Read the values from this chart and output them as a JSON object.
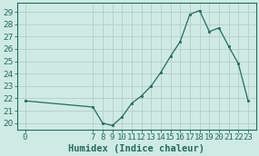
{
  "x": [
    0,
    7,
    8,
    9,
    10,
    11,
    12,
    13,
    14,
    15,
    16,
    17,
    18,
    19,
    20,
    21,
    22,
    23
  ],
  "y": [
    21.8,
    21.3,
    20.0,
    19.8,
    20.5,
    21.6,
    22.2,
    23.0,
    24.1,
    25.4,
    26.6,
    28.8,
    29.1,
    27.4,
    27.7,
    26.2,
    24.8,
    21.8
  ],
  "line_color": "#276b5e",
  "bg_color": "#ceeae4",
  "grid_major_color": "#b8ccc8",
  "grid_minor_color": "#d4e6e2",
  "xlabel": "Humidex (Indice chaleur)",
  "ylim": [
    19.5,
    29.7
  ],
  "yticks": [
    20,
    21,
    22,
    23,
    24,
    25,
    26,
    27,
    28,
    29
  ],
  "xlim": [
    -0.8,
    23.8
  ],
  "xtick_positions": [
    0,
    7,
    8,
    9,
    10,
    11,
    12,
    13,
    14,
    15,
    16,
    17,
    18,
    19,
    20,
    21,
    22,
    23
  ],
  "xtick_labels": [
    "0",
    "7",
    "8",
    "9",
    "10",
    "11",
    "12",
    "13",
    "14",
    "15",
    "16",
    "17",
    "18",
    "19",
    "20",
    "21",
    "22",
    "23"
  ],
  "xlabel_fontsize": 7.5,
  "tick_fontsize": 6.5
}
